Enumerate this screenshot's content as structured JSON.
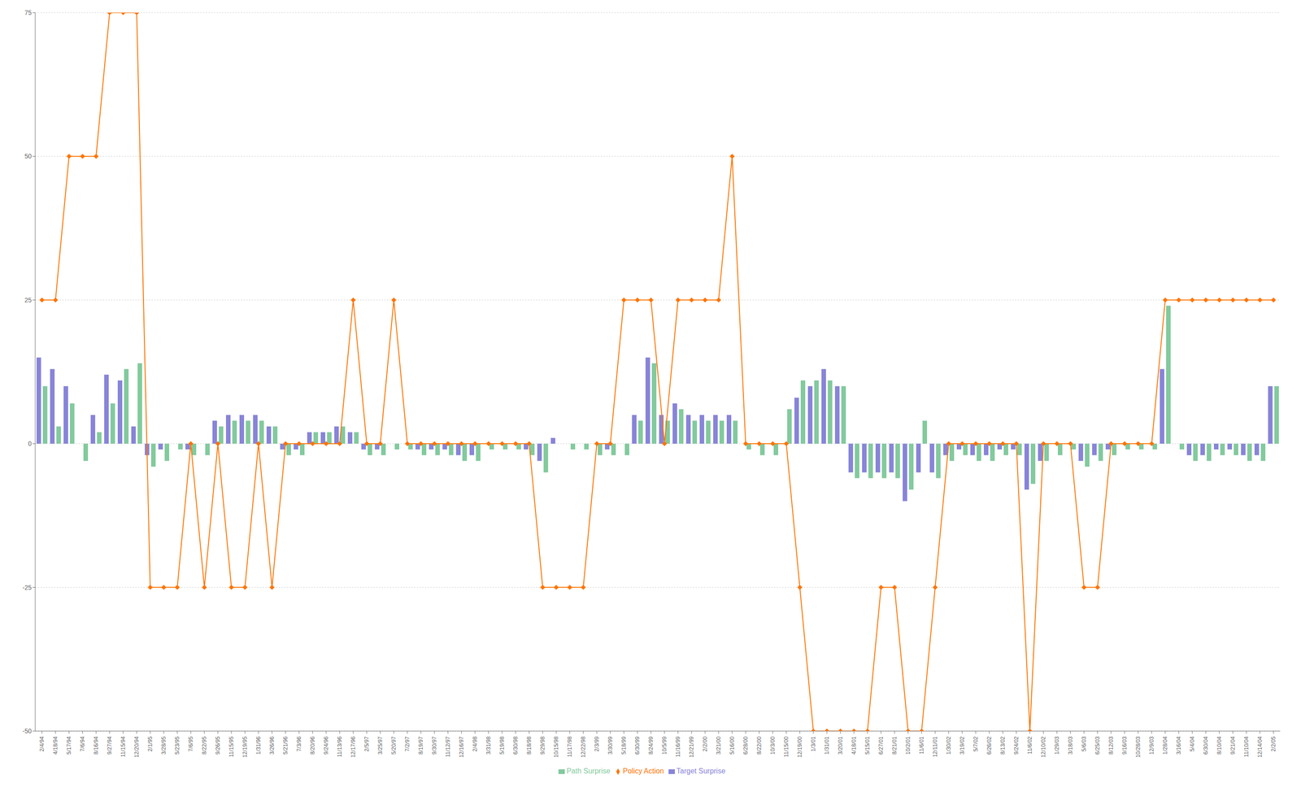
{
  "chart_data": {
    "type": "bar",
    "categories": [
      "2/4/94",
      "4/18/94",
      "5/17/94",
      "7/6/94",
      "8/16/94",
      "9/27/94",
      "11/15/94",
      "12/20/94",
      "2/1/95",
      "3/28/95",
      "5/23/95",
      "7/6/95",
      "8/22/95",
      "9/26/95",
      "11/15/95",
      "12/19/95",
      "1/31/96",
      "3/26/96",
      "5/21/96",
      "7/3/96",
      "8/20/96",
      "9/24/96",
      "11/13/96",
      "12/17/96",
      "2/5/97",
      "3/25/97",
      "5/20/97",
      "7/2/97",
      "8/19/97",
      "9/30/97",
      "11/12/97",
      "12/16/97",
      "2/4/98",
      "3/31/98",
      "5/19/98",
      "6/30/98",
      "8/18/98",
      "9/29/98",
      "10/15/98",
      "11/17/98",
      "12/22/98",
      "2/3/99",
      "3/30/99",
      "5/18/99",
      "6/30/99",
      "8/24/99",
      "10/5/99",
      "11/16/99",
      "12/21/99",
      "2/2/00",
      "3/21/00",
      "5/16/00",
      "6/28/00",
      "8/22/00",
      "10/3/00",
      "11/15/00",
      "12/19/00",
      "1/3/01",
      "1/31/01",
      "3/20/01",
      "4/18/01",
      "5/15/01",
      "6/27/01",
      "8/21/01",
      "10/2/01",
      "11/6/01",
      "12/11/01",
      "1/30/02",
      "3/19/02",
      "5/7/02",
      "6/26/02",
      "8/13/02",
      "9/24/02",
      "11/6/02",
      "12/10/02",
      "1/29/03",
      "3/18/03",
      "5/6/03",
      "6/25/03",
      "8/12/03",
      "9/16/03",
      "10/28/03",
      "12/9/03",
      "1/28/04",
      "3/16/04",
      "5/4/04",
      "6/30/04",
      "8/10/04",
      "9/21/04",
      "11/10/04",
      "12/14/04",
      "2/2/05"
    ],
    "series": [
      {
        "name": "Target Surprise",
        "type": "bar",
        "color": "#8884d8",
        "values": [
          15,
          13,
          10,
          0,
          5,
          12,
          11,
          3,
          -2,
          -1,
          0,
          -1,
          0,
          4,
          5,
          5,
          5,
          3,
          -1,
          -1,
          2,
          2,
          3,
          2,
          -1,
          -1,
          0,
          0,
          -1,
          -1,
          -1,
          -2,
          -2,
          0,
          0,
          0,
          -1,
          -3,
          1,
          0,
          0,
          0,
          -1,
          0,
          5,
          15,
          5,
          7,
          5,
          5,
          5,
          5,
          0,
          0,
          0,
          0,
          8,
          10,
          13,
          10,
          -5,
          -5,
          -5,
          -5,
          -10,
          -5,
          -5,
          -2,
          -1,
          -2,
          -2,
          -1,
          -1,
          -8,
          -3,
          0,
          0,
          -3,
          -2,
          -1,
          0,
          0,
          0,
          13,
          0,
          -2,
          -2,
          -1,
          -1,
          -2,
          -2,
          10
        ]
      },
      {
        "name": "Path Surprise",
        "type": "bar",
        "color": "#82ca9d",
        "values": [
          10,
          3,
          7,
          -3,
          2,
          7,
          13,
          14,
          -4,
          -3,
          -1,
          -2,
          -2,
          3,
          4,
          4,
          4,
          3,
          -2,
          -2,
          2,
          2,
          3,
          2,
          -2,
          -2,
          -1,
          -1,
          -2,
          -2,
          -2,
          -3,
          -3,
          -1,
          -1,
          -1,
          -2,
          -5,
          0,
          -1,
          -1,
          -2,
          -2,
          -2,
          4,
          14,
          4,
          6,
          4,
          4,
          4,
          4,
          -1,
          -2,
          -2,
          6,
          11,
          11,
          11,
          10,
          -6,
          -6,
          -6,
          -6,
          -8,
          4,
          -6,
          -3,
          -2,
          -3,
          -3,
          -2,
          -2,
          -7,
          -3,
          -2,
          -1,
          -4,
          -3,
          -2,
          -1,
          -1,
          -1,
          24,
          -1,
          -3,
          -3,
          -2,
          -2,
          -3,
          -3,
          10
        ]
      },
      {
        "name": "Policy Action",
        "type": "line",
        "color": "#ff7300",
        "marker": "diamond",
        "values": [
          25,
          25,
          50,
          50,
          50,
          75,
          75,
          75,
          -25,
          -25,
          -25,
          0,
          -25,
          0,
          -25,
          -25,
          0,
          -25,
          0,
          0,
          0,
          0,
          0,
          25,
          0,
          0,
          25,
          0,
          0,
          0,
          0,
          0,
          0,
          0,
          0,
          0,
          0,
          -25,
          -25,
          -25,
          -25,
          0,
          0,
          25,
          25,
          25,
          0,
          25,
          25,
          25,
          25,
          50,
          0,
          0,
          0,
          0,
          -25,
          -50,
          -50,
          -50,
          -50,
          -50,
          -25,
          -25,
          -50,
          -50,
          -25,
          0,
          0,
          0,
          0,
          0,
          0,
          -50,
          0,
          0,
          0,
          -25,
          -25,
          0,
          0,
          0,
          0,
          25,
          25,
          25,
          25,
          25,
          25,
          25,
          25,
          25
        ]
      }
    ],
    "ylim": [
      -50,
      75
    ],
    "yticks": [
      -50,
      -25,
      0,
      25,
      50,
      75
    ],
    "grid": true,
    "legend": "bottom"
  }
}
